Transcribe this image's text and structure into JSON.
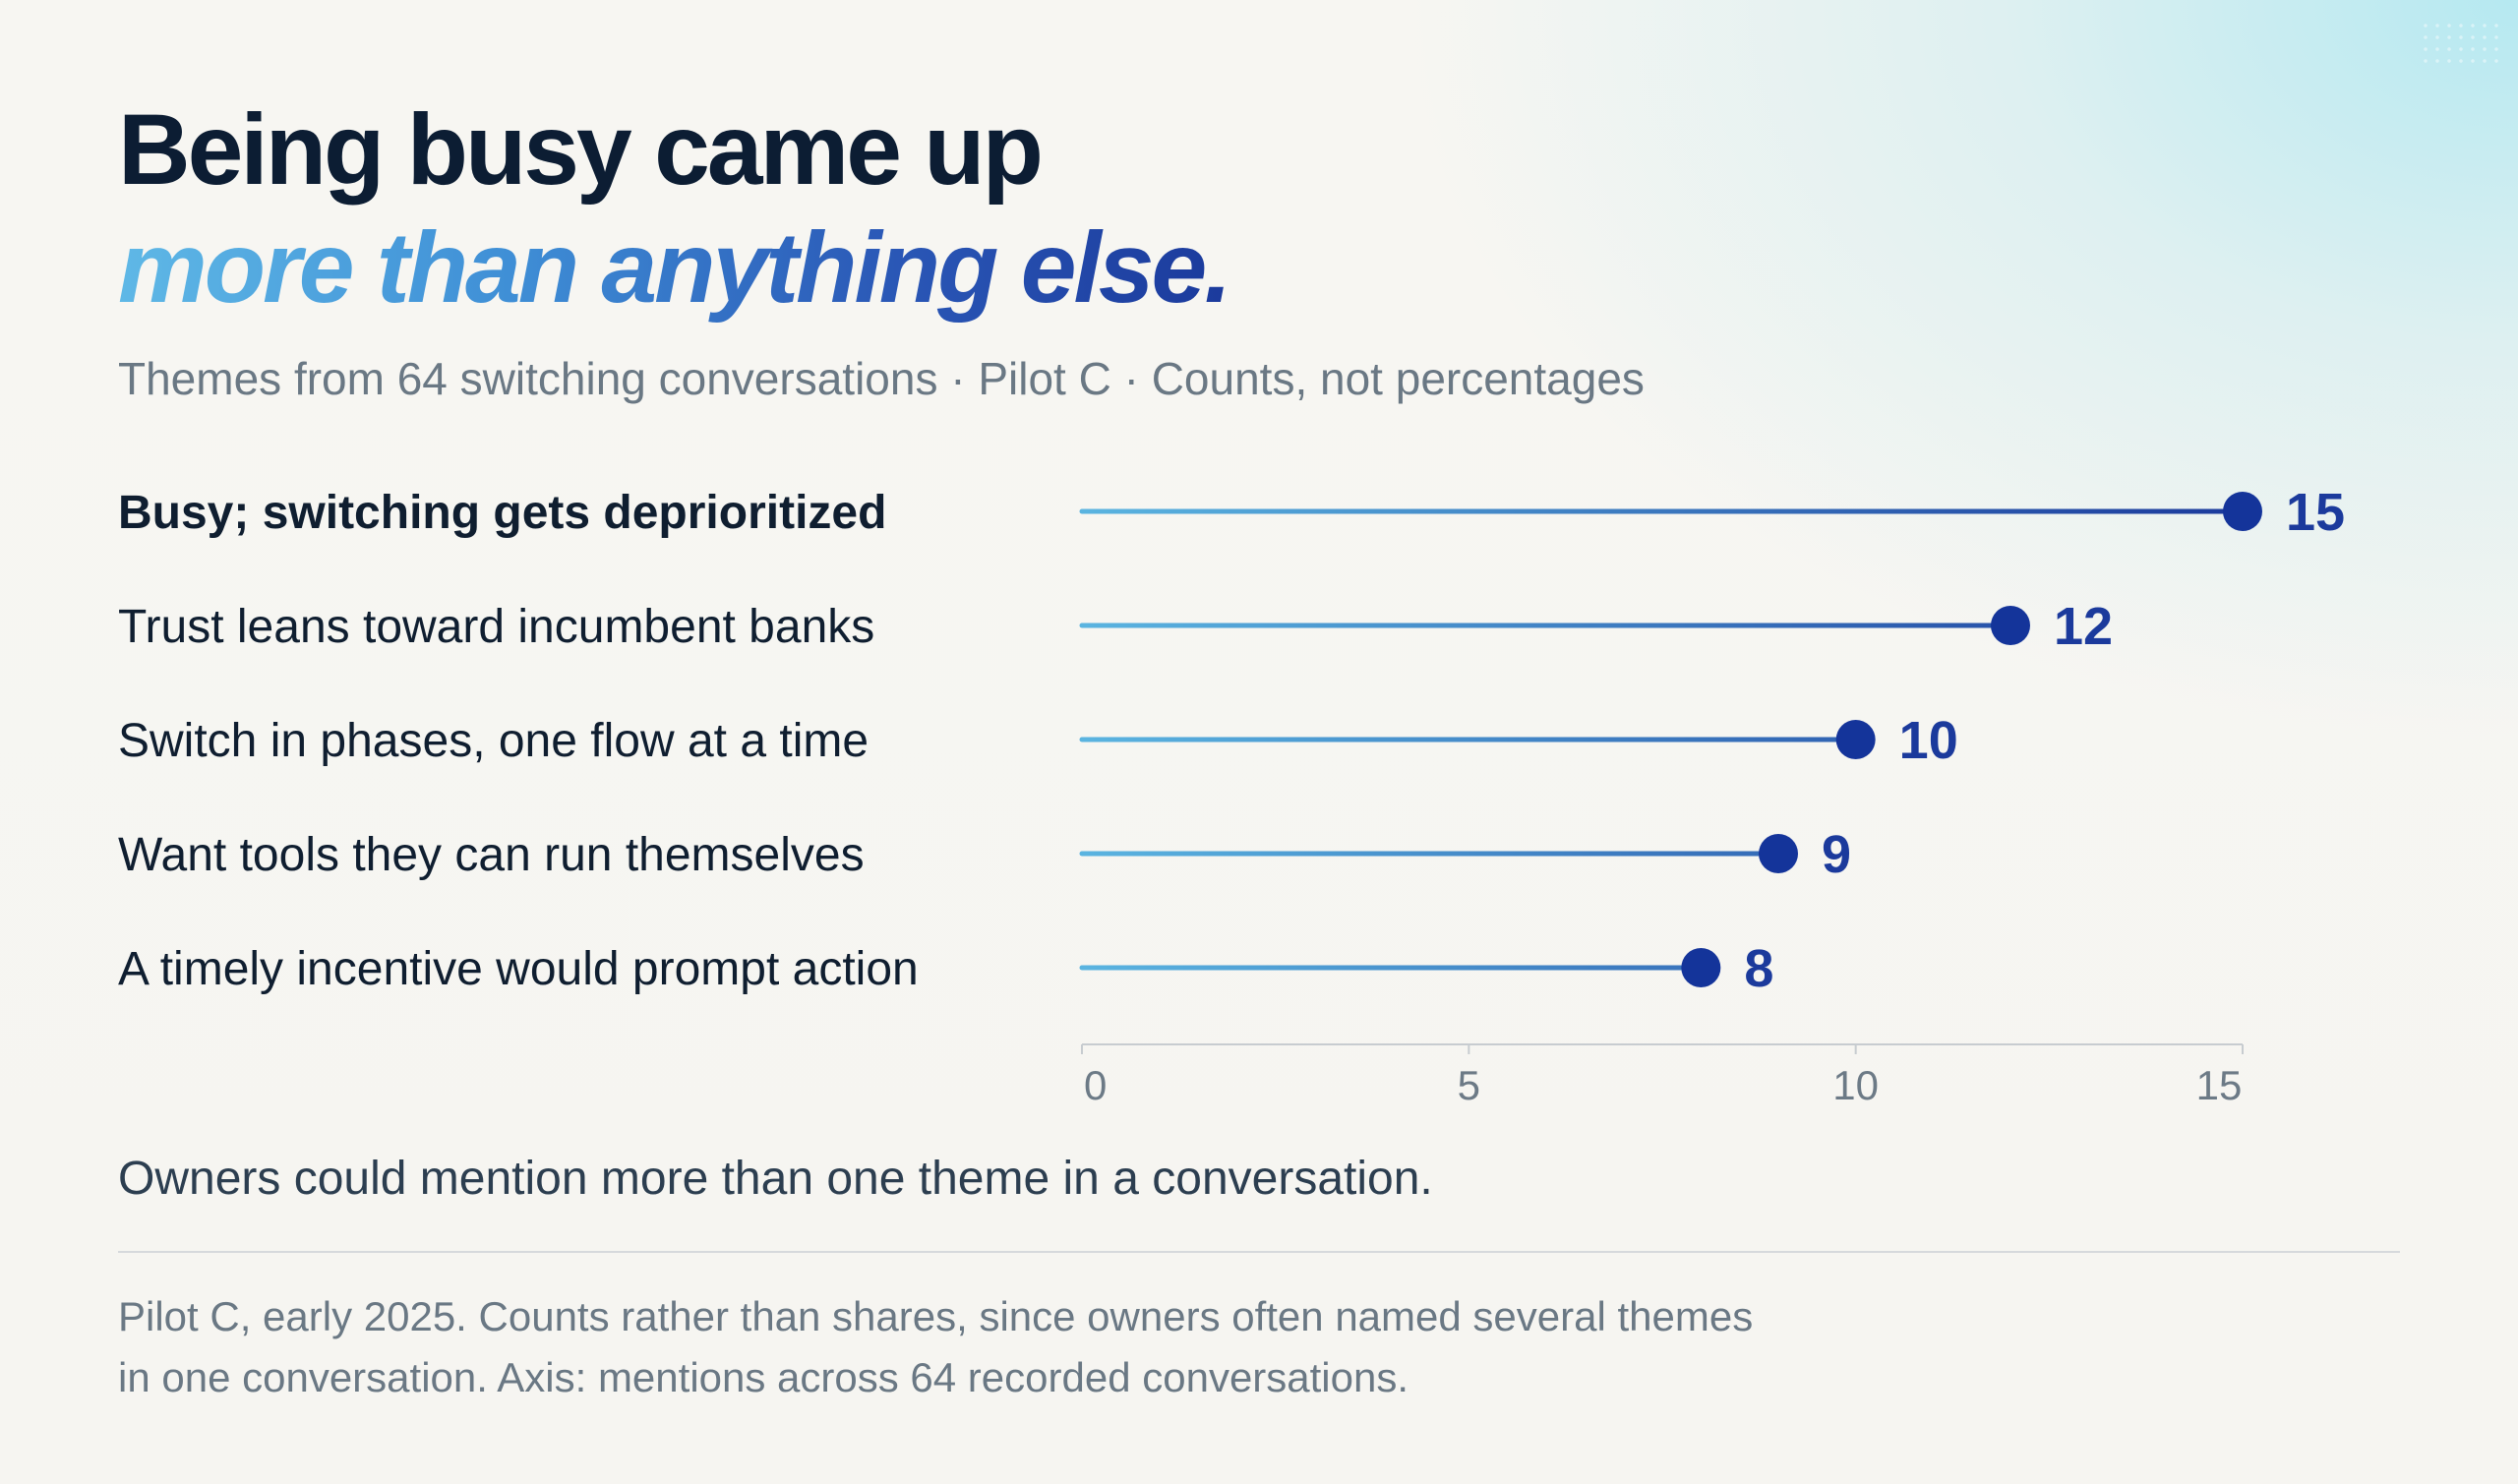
{
  "header": {
    "title_line1": "Being busy came up",
    "title_line2": "more than anything else.",
    "subtitle": "Themes from 64 switching conversations · Pilot C · Counts, not percentages"
  },
  "chart_data": {
    "type": "bar",
    "style": "lollipop",
    "orientation": "horizontal",
    "categories": [
      "Busy; switching gets deprioritized",
      "Trust leans toward incumbent banks",
      "Switch in phases, one flow at a time",
      "Want tools they can run themselves",
      "A timely incentive would prompt action"
    ],
    "values": [
      15,
      12,
      10,
      9,
      8
    ],
    "value_labels": [
      "15",
      "12",
      "10",
      "9",
      "8"
    ],
    "xlim": [
      0,
      15
    ],
    "x_ticks": [
      "0",
      "5",
      "10",
      "15"
    ],
    "grid": false,
    "colors": {
      "stem_start": "#5ab4e0",
      "stem_end": "#1b3a9c",
      "marker": "#14349a",
      "value_label": "#1b3a9c"
    }
  },
  "footer": {
    "note": "Owners could mention more than one theme in a conversation.",
    "source_line1": "Pilot C, early 2025. Counts rather than shares, since owners often named several themes",
    "source_line2": "in one conversation. Axis: mentions across 64 recorded conversations."
  }
}
